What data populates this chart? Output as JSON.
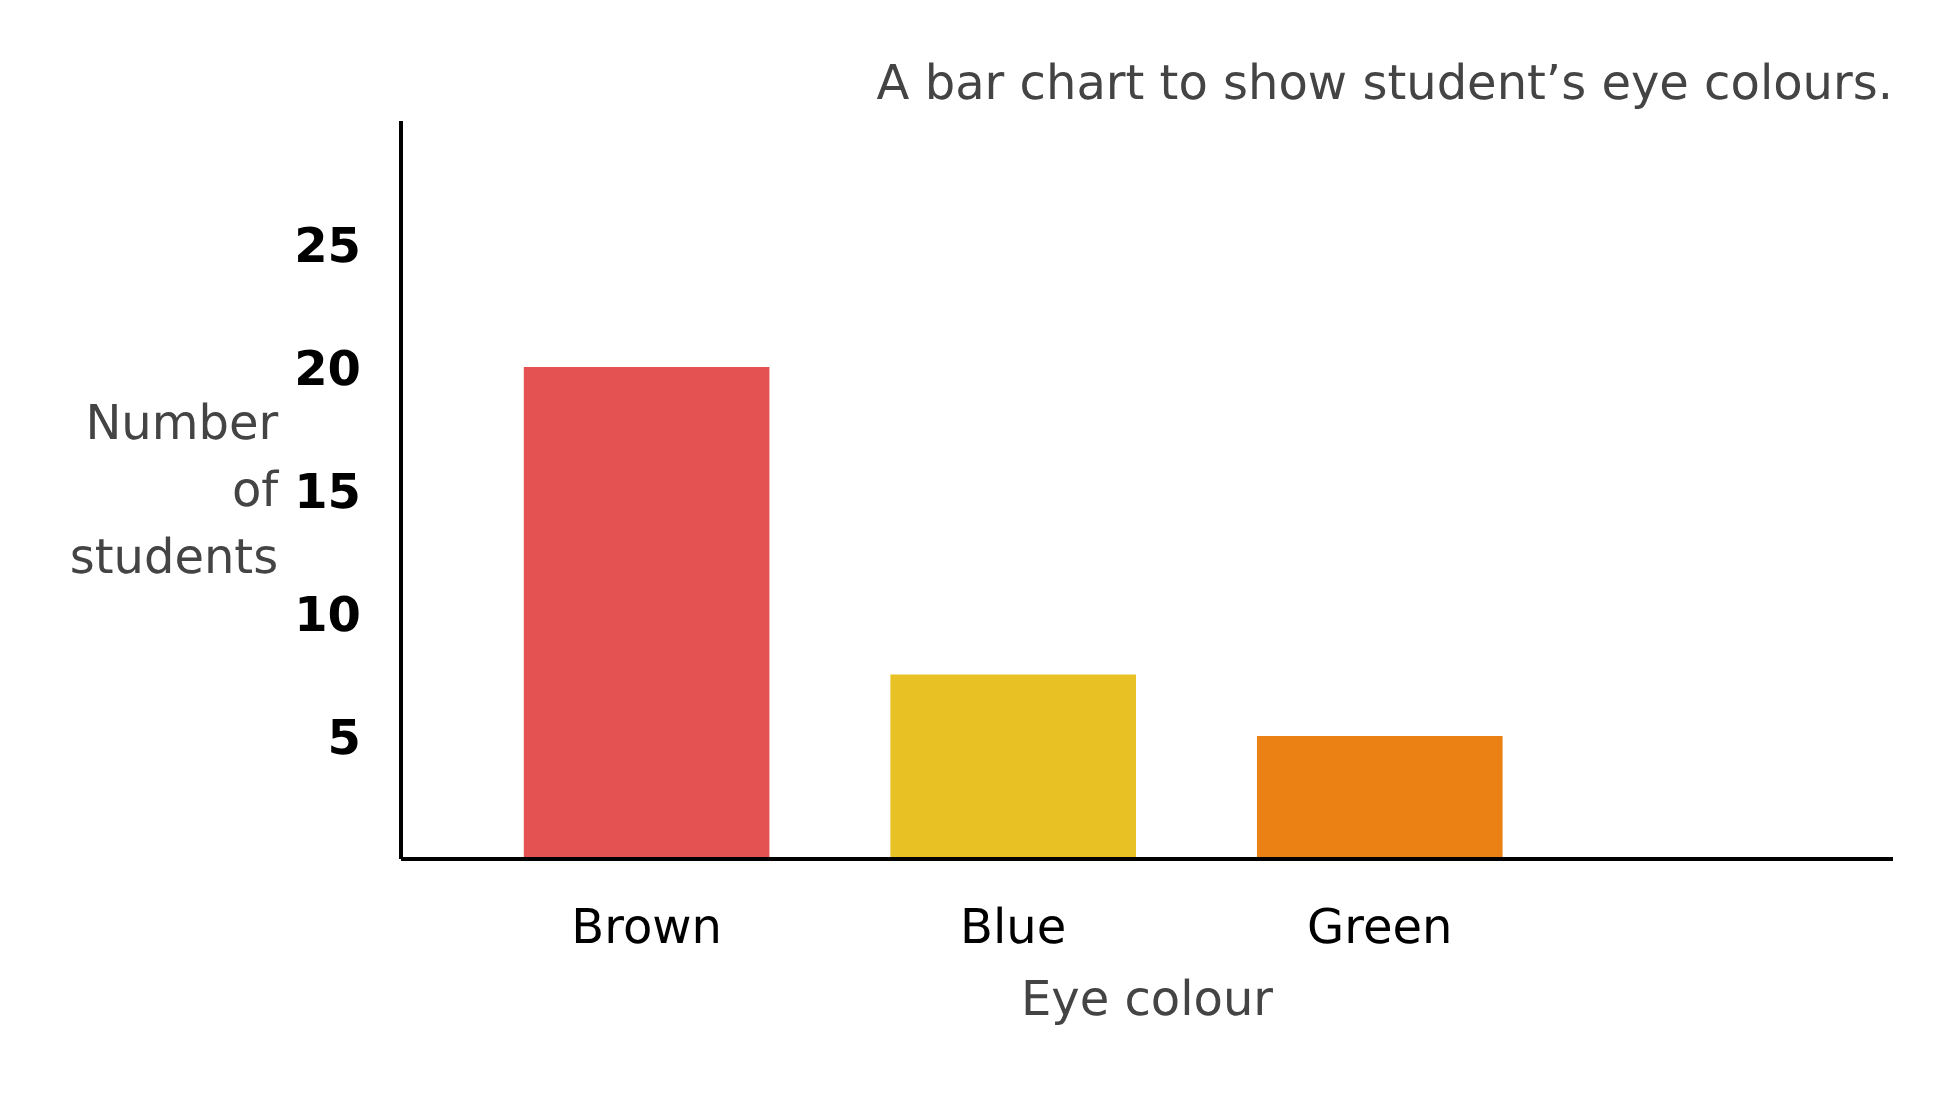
{
  "chart_data": {
    "type": "bar",
    "title": "A bar chart to show student’s eye colours.",
    "xlabel": "Eye colour",
    "ylabel": "Number\nof\nstudents",
    "categories": [
      "Brown",
      "Blue",
      "Green"
    ],
    "values": [
      20,
      7.5,
      5
    ],
    "colors": [
      "#e45252",
      "#e8c124",
      "#eb8114"
    ],
    "ylim": [
      0,
      30
    ],
    "yticks": [
      5,
      10,
      15,
      20,
      25
    ],
    "grid": false
  }
}
